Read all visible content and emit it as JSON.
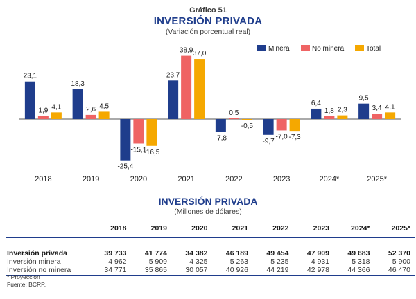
{
  "chart_data": {
    "type": "bar",
    "figure_label": "Gráfico 51",
    "title": "INVERSIÓN PRIVADA",
    "subtitle": "(Variación porcentual real)",
    "categories": [
      "2018",
      "2019",
      "2020",
      "2021",
      "2022",
      "2023",
      "2024*",
      "2025*"
    ],
    "series": [
      {
        "name": "Minera",
        "color": "#1f3d8c",
        "values": [
          23.1,
          18.3,
          -25.4,
          23.7,
          -7.8,
          -9.7,
          6.4,
          9.5
        ],
        "labels": [
          "23,1",
          "18,3",
          "-25,4",
          "23,7",
          "-7,8",
          "-9,7",
          "6,4",
          "9,5"
        ]
      },
      {
        "name": "No minera",
        "color": "#ef6464",
        "values": [
          1.9,
          2.6,
          -15.1,
          38.9,
          0.5,
          -7.0,
          1.8,
          3.4
        ],
        "labels": [
          "1,9",
          "2,6",
          "-15,1",
          "38,9",
          "0,5",
          "-7,0",
          "1,8",
          "3,4"
        ]
      },
      {
        "name": "Total",
        "color": "#f5a800",
        "values": [
          4.1,
          4.5,
          -16.5,
          37.0,
          -0.5,
          -7.3,
          2.3,
          4.1
        ],
        "labels": [
          "4,1",
          "4,5",
          "-16,5",
          "37,0",
          "-0,5",
          "-7,3",
          "2,3",
          "4,1"
        ]
      }
    ],
    "legend_position": "top-right",
    "grid": false
  },
  "table": {
    "title": "INVERSIÓN PRIVADA",
    "subtitle": "(Millones de dólares)",
    "columns": [
      "",
      "2018",
      "2019",
      "2020",
      "2021",
      "2022",
      "2023",
      "2024*",
      "2025*"
    ],
    "rows": [
      {
        "label": "Inversión privada",
        "bold": true,
        "values": [
          "39 733",
          "41 774",
          "34 382",
          "46 189",
          "49 454",
          "47 909",
          "49 683",
          "52 370"
        ]
      },
      {
        "label": "Inversión minera",
        "bold": false,
        "values": [
          "4 962",
          "5 909",
          "4 325",
          "5 263",
          "5 235",
          "4 931",
          "5 318",
          "5 900"
        ]
      },
      {
        "label": "Inversión no minera",
        "bold": false,
        "values": [
          "34 771",
          "35 865",
          "30 057",
          "40 926",
          "44 219",
          "42 978",
          "44 366",
          "46 470"
        ]
      }
    ]
  },
  "notes": {
    "projection": "* Proyección",
    "source": "Fuente: BCRP."
  }
}
